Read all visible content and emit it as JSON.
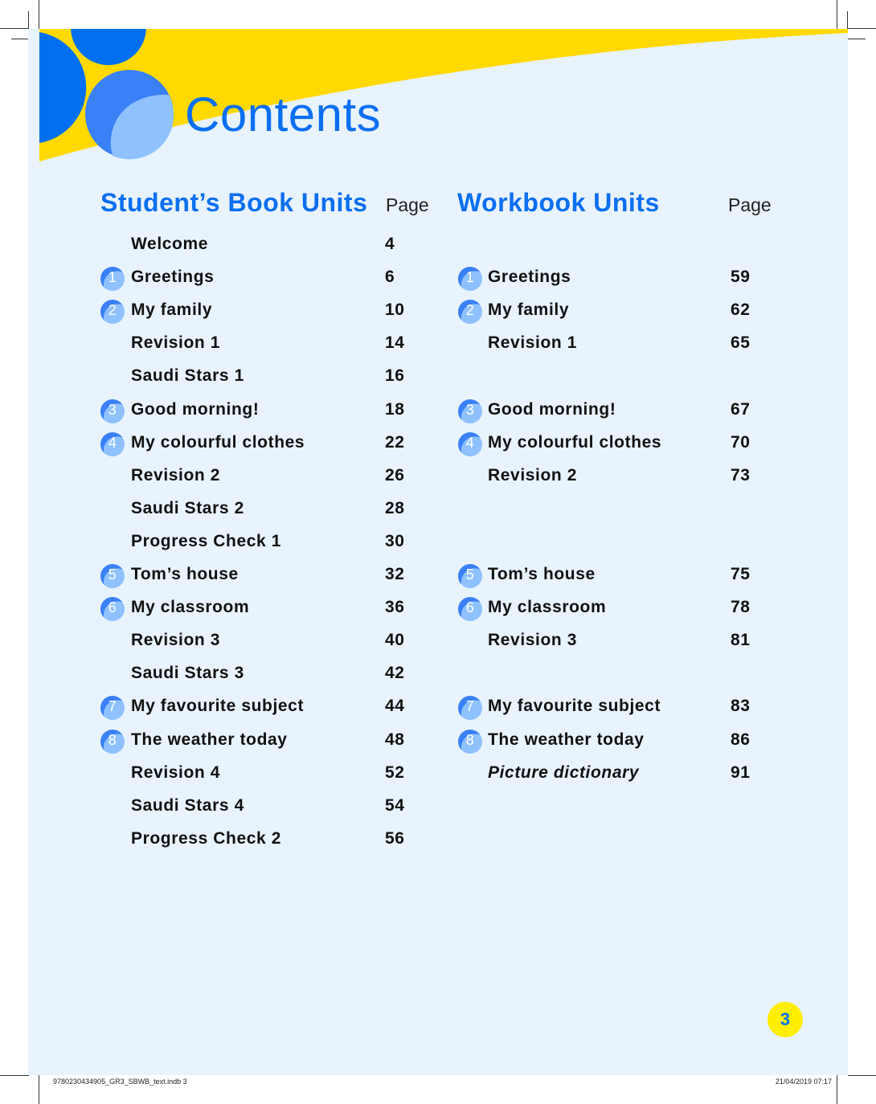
{
  "title": "Contents",
  "colors": {
    "accent_blue": "#0a6ff0",
    "yellow": "#ffd900",
    "page_bg": "#e8f3fd"
  },
  "students_book": {
    "heading": "Student’s Book Units",
    "page_label": "Page",
    "items": [
      {
        "badge": "",
        "label": "Welcome",
        "page": "4"
      },
      {
        "badge": "1",
        "label": "Greetings",
        "page": "6"
      },
      {
        "badge": "2",
        "label": "My family",
        "page": "10"
      },
      {
        "badge": "",
        "label": "Revision 1",
        "page": "14"
      },
      {
        "badge": "",
        "label": "Saudi Stars 1",
        "page": "16"
      },
      {
        "badge": "3",
        "label": "Good morning!",
        "page": "18"
      },
      {
        "badge": "4",
        "label": "My colourful clothes",
        "page": "22"
      },
      {
        "badge": "",
        "label": "Revision 2",
        "page": "26"
      },
      {
        "badge": "",
        "label": "Saudi Stars 2",
        "page": "28"
      },
      {
        "badge": "",
        "label": "Progress Check 1",
        "page": "30"
      },
      {
        "badge": "5",
        "label": "Tom’s house",
        "page": "32"
      },
      {
        "badge": "6",
        "label": "My classroom",
        "page": "36"
      },
      {
        "badge": "",
        "label": "Revision 3",
        "page": "40"
      },
      {
        "badge": "",
        "label": "Saudi Stars 3",
        "page": "42"
      },
      {
        "badge": "7",
        "label": "My favourite subject",
        "page": "44"
      },
      {
        "badge": "8",
        "label": "The weather today",
        "page": "48"
      },
      {
        "badge": "",
        "label": "Revision 4",
        "page": "52"
      },
      {
        "badge": "",
        "label": "Saudi Stars 4",
        "page": "54"
      },
      {
        "badge": "",
        "label": "Progress Check 2",
        "page": "56"
      }
    ]
  },
  "workbook": {
    "heading": "Workbook Units",
    "page_label": "Page",
    "items": [
      null,
      {
        "badge": "1",
        "label": "Greetings",
        "page": "59"
      },
      {
        "badge": "2",
        "label": "My family",
        "page": "62"
      },
      {
        "badge": "",
        "label": "Revision 1",
        "page": "65"
      },
      null,
      {
        "badge": "3",
        "label": "Good morning!",
        "page": "67"
      },
      {
        "badge": "4",
        "label": "My colourful clothes",
        "page": "70"
      },
      {
        "badge": "",
        "label": "Revision 2",
        "page": "73"
      },
      null,
      null,
      {
        "badge": "5",
        "label": "Tom’s house",
        "page": "75"
      },
      {
        "badge": "6",
        "label": "My classroom",
        "page": "78"
      },
      {
        "badge": "",
        "label": "Revision 3",
        "page": "81"
      },
      null,
      {
        "badge": "7",
        "label": "My favourite subject",
        "page": "83"
      },
      {
        "badge": "8",
        "label": "The weather today",
        "page": "86"
      },
      {
        "badge": "",
        "label": "Picture dictionary",
        "page": "91",
        "italic": true
      }
    ]
  },
  "page_number": "3",
  "slug": {
    "file": "9780230434905_GR3_SBWB_text.indb   3",
    "datetime": "21/04/2019   07:17"
  }
}
